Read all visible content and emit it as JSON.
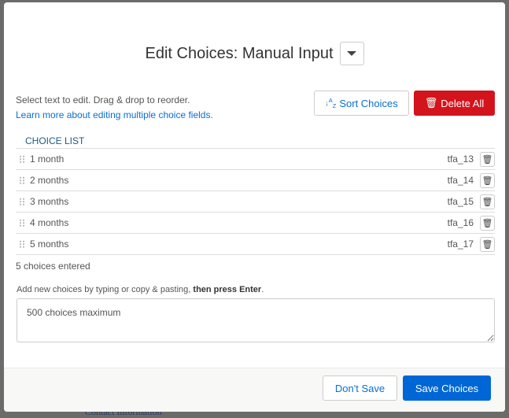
{
  "background": {
    "text": "Contact Information"
  },
  "dialog": {
    "title": "Edit Choices: Manual Input",
    "help_text": "Select text to edit. Drag & drop to reorder.",
    "help_link": "Learn more about editing multiple choice fields.",
    "sort_label": "Sort Choices",
    "delete_all_label": "Delete All",
    "choice_list_header": "CHOICE LIST",
    "choices": [
      {
        "label": "1 month",
        "code": "tfa_13"
      },
      {
        "label": "2 months",
        "code": "tfa_14"
      },
      {
        "label": "3 months",
        "code": "tfa_15"
      },
      {
        "label": "4 months",
        "code": "tfa_16"
      },
      {
        "label": "5 months",
        "code": "tfa_17"
      }
    ],
    "count_text": "5 choices entered",
    "add_help": "Add new choices by typing or copy & pasting, ",
    "add_help_bold": "then press Enter",
    "add_help_end": ".",
    "input_placeholder": "500 choices maximum",
    "dont_save_label": "Don't Save",
    "save_label": "Save Choices"
  },
  "colors": {
    "primary": "#0066d6",
    "danger": "#d3141c",
    "link": "#0a6fd1"
  }
}
